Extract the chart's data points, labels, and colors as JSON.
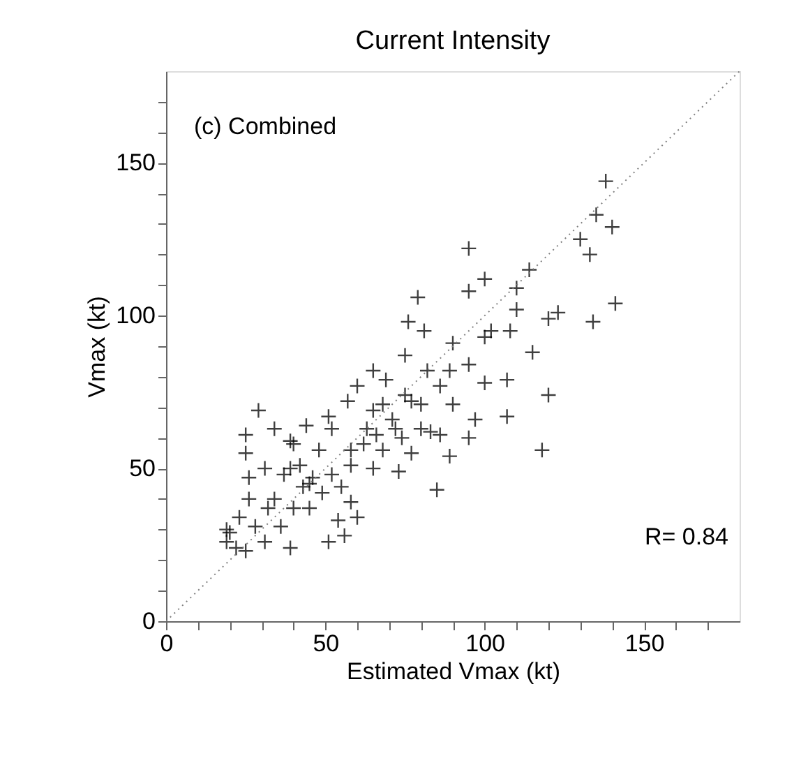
{
  "chart_data": {
    "type": "scatter",
    "title": "Current Intensity",
    "xlabel": "Estimated Vmax (kt)",
    "ylabel": "Vmax (kt)",
    "annotations": [
      "(c) Combined",
      "R= 0.84"
    ],
    "xlim": [
      0,
      180
    ],
    "ylim": [
      0,
      180
    ],
    "xticks": [
      0,
      {
        "value": 10,
        "label": null
      },
      {
        "value": 20,
        "label": null
      },
      {
        "value": 30,
        "label": null
      },
      {
        "value": 40,
        "label": null
      },
      50,
      {
        "value": 60,
        "label": null
      },
      {
        "value": 70,
        "label": null
      },
      {
        "value": 80,
        "label": null
      },
      {
        "value": 90,
        "label": null
      },
      100,
      {
        "value": 110,
        "label": null
      },
      {
        "value": 120,
        "label": null
      },
      {
        "value": 130,
        "label": null
      },
      {
        "value": 140,
        "label": null
      },
      150,
      {
        "value": 160,
        "label": null
      },
      {
        "value": 170,
        "label": null
      }
    ],
    "yticks": [
      0,
      {
        "value": 10,
        "label": null
      },
      {
        "value": 20,
        "label": null
      },
      {
        "value": 30,
        "label": null
      },
      {
        "value": 40,
        "label": null
      },
      50,
      {
        "value": 60,
        "label": null
      },
      {
        "value": 70,
        "label": null
      },
      {
        "value": 80,
        "label": null
      },
      {
        "value": 90,
        "label": null
      },
      100,
      {
        "value": 110,
        "label": null
      },
      {
        "value": 120,
        "label": null
      },
      {
        "value": 130,
        "label": null
      },
      {
        "value": 140,
        "label": null
      },
      150,
      {
        "value": 160,
        "label": null
      },
      {
        "value": 170,
        "label": null
      }
    ],
    "marker": "cross",
    "series": [
      {
        "color": "#000000",
        "x": [
          138,
          135,
          140,
          130,
          133,
          141,
          134,
          120,
          123,
          114,
          110,
          110,
          108,
          102,
          100,
          95,
          100,
          95,
          79,
          76,
          81,
          90,
          115,
          120,
          118,
          107,
          107,
          100,
          95,
          89,
          86,
          90,
          82,
          75,
          85,
          89,
          95,
          97,
          83,
          73,
          77,
          75,
          65,
          69,
          60,
          57,
          51,
          44,
          34,
          29,
          25,
          25,
          39,
          65,
          71,
          74,
          62,
          58,
          65,
          52,
          45,
          39,
          31,
          34,
          40,
          26,
          23,
          20,
          19,
          25,
          31,
          39,
          36,
          45,
          49,
          55,
          58,
          60,
          54,
          51,
          56,
          43,
          37,
          48,
          52,
          58,
          68,
          77,
          80,
          86,
          80,
          68,
          63,
          42,
          26,
          28,
          32,
          22,
          19,
          40,
          46,
          66,
          72
        ],
        "values": [
          144,
          133,
          129,
          125,
          120,
          104,
          98,
          99,
          101,
          115,
          109,
          102,
          95,
          95,
          93,
          122,
          112,
          108,
          106,
          98,
          95,
          91,
          88,
          74,
          56,
          67,
          79,
          78,
          84,
          82,
          77,
          71,
          82,
          87,
          43,
          54,
          60,
          66,
          62,
          49,
          55,
          74,
          82,
          79,
          77,
          72,
          67,
          64,
          63,
          69,
          61,
          55,
          59,
          69,
          66,
          60,
          58,
          51,
          50,
          48,
          45,
          50,
          50,
          40,
          37,
          40,
          34,
          29,
          26,
          23,
          26,
          24,
          31,
          37,
          42,
          44,
          39,
          34,
          33,
          26,
          28,
          44,
          48,
          56,
          63,
          56,
          56,
          72,
          71,
          61,
          63,
          71,
          63,
          51,
          47,
          31,
          37,
          24,
          30,
          58,
          47,
          61,
          63
        ]
      },
      {
        "type": "line",
        "color": "#808080",
        "line_style": "dotted",
        "marker": "none",
        "x": [
          0,
          180
        ],
        "values": [
          0,
          180
        ]
      }
    ]
  }
}
